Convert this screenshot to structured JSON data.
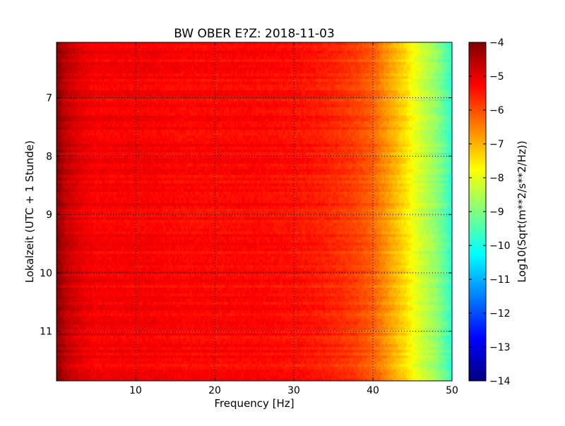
{
  "chart_data": {
    "type": "heatmap",
    "title": "BW OBER E?Z: 2018-11-03",
    "xlabel": "Frequency [Hz]",
    "ylabel": "Lokalzeit (UTC + 1 Stunde)",
    "colorbar_label": "Log10(Sqrt(m**2/s**2/Hz))",
    "xlim": [
      0,
      50
    ],
    "ylim": [
      6.05,
      11.85
    ],
    "y_inverted": true,
    "x_ticks": [
      10,
      20,
      30,
      40,
      50
    ],
    "y_ticks": [
      7,
      8,
      9,
      10,
      11
    ],
    "colorbar_range": [
      -14,
      -4
    ],
    "colorbar_ticks": [
      -4,
      -5,
      -6,
      -7,
      -8,
      -9,
      -10,
      -11,
      -12,
      -13,
      -14
    ],
    "colormap": "jet",
    "grid": true,
    "grid_style": "dotted",
    "frequency_profile": {
      "frequency_hz": [
        0,
        0.5,
        1,
        2,
        3,
        5,
        8,
        12,
        16,
        20,
        25,
        30,
        33,
        36,
        38,
        40,
        41,
        42,
        43,
        44,
        45,
        46,
        47,
        48,
        49,
        50
      ],
      "log10_amplitude": [
        -4.1,
        -4.3,
        -4.6,
        -4.8,
        -5.0,
        -5.2,
        -5.2,
        -5.2,
        -5.3,
        -5.3,
        -5.3,
        -5.4,
        -5.5,
        -5.7,
        -5.9,
        -6.2,
        -6.5,
        -6.8,
        -7.1,
        -7.4,
        -7.8,
        -8.2,
        -8.5,
        -8.8,
        -9.3,
        -9.8
      ]
    },
    "colors": {
      "jet_stops": [
        "#000080",
        "#0000ff",
        "#0080ff",
        "#00ffff",
        "#80ff80",
        "#ffff00",
        "#ff8000",
        "#ff0000",
        "#800000"
      ]
    }
  }
}
